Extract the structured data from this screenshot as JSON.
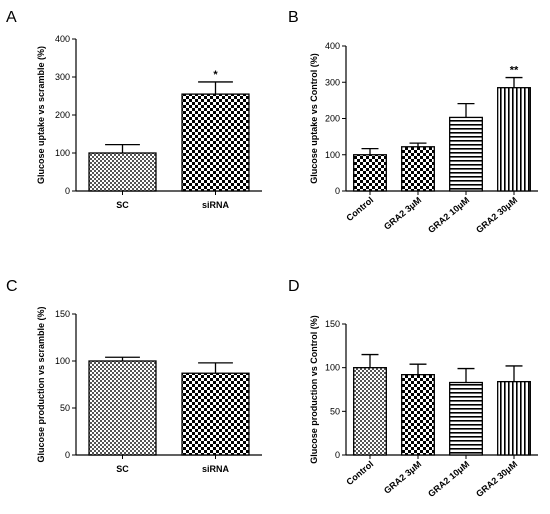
{
  "colors": {
    "ink": "#000000",
    "background": "#ffffff"
  },
  "chart_data": [
    {
      "panel": "A",
      "type": "bar",
      "ylabel": "Glucose uptake vs scramble (%)",
      "ylim": [
        0,
        400
      ],
      "yticks": [
        0,
        100,
        200,
        300,
        400
      ],
      "categories": [
        "SC",
        "siRNA"
      ],
      "values": [
        100,
        255
      ],
      "errors": [
        22,
        32
      ],
      "patterns": [
        "dots-fine",
        "checker"
      ],
      "significance": [
        "",
        "*"
      ],
      "category_rotation": 0
    },
    {
      "panel": "B",
      "type": "bar",
      "ylabel": "Glucose uptake vs Control (%)",
      "ylim": [
        0,
        400
      ],
      "yticks": [
        0,
        100,
        200,
        300,
        400
      ],
      "categories": [
        "Control",
        "GRA2 3μM",
        "GRA2 10μM",
        "GRA2 30μM"
      ],
      "values": [
        100,
        122,
        203,
        285
      ],
      "errors": [
        17,
        10,
        38,
        28
      ],
      "patterns": [
        "checker",
        "checker",
        "hlines",
        "vlines"
      ],
      "significance": [
        "",
        "",
        "",
        "**"
      ],
      "category_rotation": -40
    },
    {
      "panel": "C",
      "type": "bar",
      "ylabel": "Glucose production vs scramble (%)",
      "ylim": [
        0,
        150
      ],
      "yticks": [
        0,
        50,
        100,
        150
      ],
      "categories": [
        "SC",
        "siRNA"
      ],
      "values": [
        100,
        87
      ],
      "errors": [
        4,
        11
      ],
      "patterns": [
        "dots-fine",
        "checker"
      ],
      "significance": [
        "",
        ""
      ],
      "category_rotation": 0
    },
    {
      "panel": "D",
      "type": "bar",
      "ylabel": "Glucose production vs Control (%)",
      "ylim": [
        0,
        150
      ],
      "yticks": [
        0,
        50,
        100,
        150
      ],
      "categories": [
        "Control",
        "GRA2 3μM",
        "GRA2 10μM",
        "GRA2 30μM"
      ],
      "values": [
        100,
        92,
        83,
        84
      ],
      "errors": [
        15,
        12,
        16,
        18
      ],
      "patterns": [
        "dots-fine",
        "checker",
        "hlines",
        "vlines"
      ],
      "significance": [
        "",
        "",
        "",
        ""
      ],
      "category_rotation": -40
    }
  ]
}
